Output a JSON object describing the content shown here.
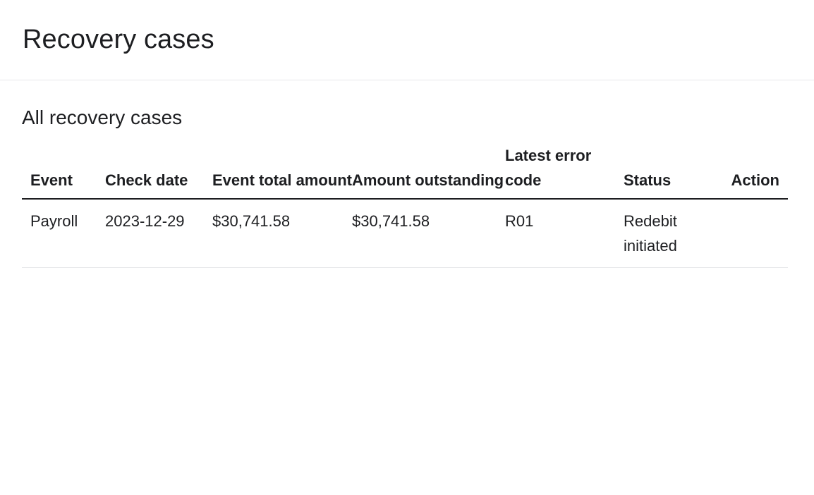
{
  "page": {
    "title": "Recovery cases"
  },
  "section": {
    "title": "All recovery cases"
  },
  "table": {
    "columns": {
      "event": "Event",
      "check_date": "Check date",
      "event_total_amount": "Event total amount",
      "amount_outstanding": "Amount outstanding",
      "latest_error_code": "Latest error code",
      "status": "Status",
      "action": "Action"
    },
    "rows": [
      {
        "event": "Payroll",
        "check_date": "2023-12-29",
        "event_total_amount": "$30,741.58",
        "amount_outstanding": "$30,741.58",
        "latest_error_code": "R01",
        "status": "Redebit initiated",
        "action": ""
      }
    ]
  }
}
